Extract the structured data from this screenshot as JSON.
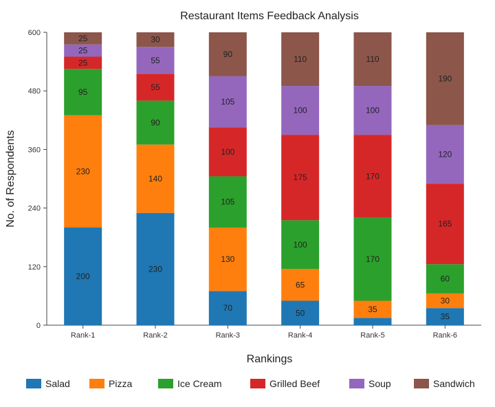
{
  "chart_data": {
    "type": "bar",
    "stacked": true,
    "title": "Restaurant Items Feedback Analysis",
    "xlabel": "Rankings",
    "ylabel": "No. of Respondents",
    "ylim": [
      0,
      600
    ],
    "yticks": [
      0,
      120,
      240,
      360,
      480,
      600
    ],
    "grid": false,
    "legend_position": "bottom",
    "categories": [
      "Rank-1",
      "Rank-2",
      "Rank-3",
      "Rank-4",
      "Rank-5",
      "Rank-6"
    ],
    "series": [
      {
        "name": "Salad",
        "color": "#1f77b4",
        "values": [
          200,
          230,
          70,
          50,
          15,
          35
        ]
      },
      {
        "name": "Pizza",
        "color": "#ff7f0e",
        "values": [
          230,
          140,
          130,
          65,
          35,
          30
        ]
      },
      {
        "name": "Ice Cream",
        "color": "#2ca02c",
        "values": [
          95,
          90,
          105,
          100,
          170,
          60
        ]
      },
      {
        "name": "Grilled Beef",
        "color": "#d62728",
        "values": [
          25,
          55,
          100,
          175,
          170,
          165
        ]
      },
      {
        "name": "Soup",
        "color": "#9467bd",
        "values": [
          25,
          55,
          105,
          100,
          100,
          120
        ]
      },
      {
        "name": "Sandwich",
        "color": "#8c564b",
        "values": [
          25,
          30,
          90,
          110,
          110,
          190
        ]
      }
    ]
  }
}
